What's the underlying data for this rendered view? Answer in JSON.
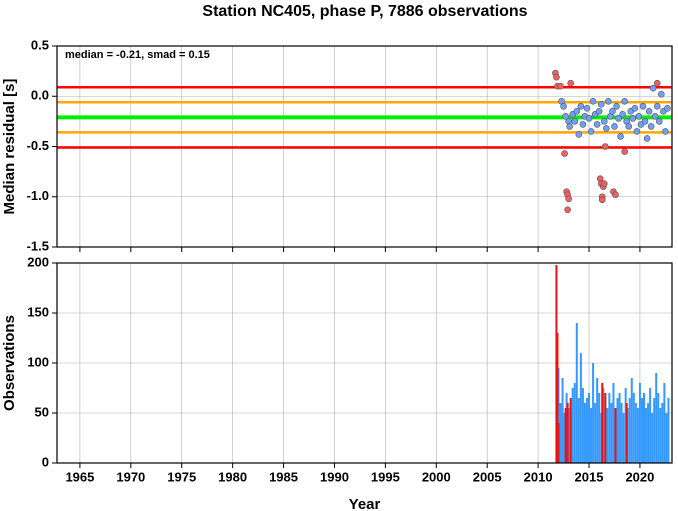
{
  "chart_data": [
    {
      "type": "scatter",
      "title": "Station NC405, phase P, 7886 observations",
      "annotation": "median = -0.21, smad = 0.15",
      "ylabel": "Median residual [s]",
      "xlim": [
        1962.75,
        2023.15
      ],
      "xticks": [
        1965,
        1970,
        1975,
        1980,
        1985,
        1990,
        1995,
        2000,
        2005,
        2010,
        2015,
        2020
      ],
      "ylim": [
        -1.5,
        0.5
      ],
      "yticks": [
        0.5,
        {
          "value": 0,
          "label": "0.0"
        },
        -0.5,
        {
          "value": -1,
          "label": "-1.0"
        },
        -1.5
      ],
      "grid": true,
      "hlines": [
        {
          "value": 0.09,
          "color": "#ff0000"
        },
        {
          "value": -0.06,
          "color": "#ffa500"
        },
        {
          "value": -0.21,
          "color": "#00ee00"
        },
        {
          "value": -0.36,
          "color": "#ffa500"
        },
        {
          "value": -0.51,
          "color": "#ff0000"
        }
      ],
      "series": [
        {
          "color": "#6fa0f8",
          "x": [
            2012.3,
            2012.5,
            2012.7,
            2013.0,
            2013.1,
            2013.4,
            2013.6,
            2013.8,
            2014.0,
            2014.2,
            2014.4,
            2014.6,
            2014.8,
            2015.0,
            2015.2,
            2015.4,
            2015.6,
            2015.8,
            2016.0,
            2016.2,
            2016.5,
            2016.7,
            2016.9,
            2017.1,
            2017.3,
            2017.5,
            2017.7,
            2017.9,
            2018.1,
            2018.3,
            2018.5,
            2018.7,
            2018.9,
            2019.1,
            2019.3,
            2019.5,
            2019.7,
            2019.9,
            2020.1,
            2020.3,
            2020.5,
            2020.7,
            2020.9,
            2021.1,
            2021.3,
            2021.5,
            2021.7,
            2021.9,
            2022.1,
            2022.3,
            2022.5,
            2022.7
          ],
          "values": [
            -0.05,
            -0.1,
            -0.2,
            -0.25,
            -0.3,
            -0.18,
            -0.25,
            -0.15,
            -0.38,
            -0.1,
            -0.28,
            -0.2,
            -0.12,
            -0.22,
            -0.35,
            -0.05,
            -0.18,
            -0.28,
            -0.15,
            -0.08,
            -0.25,
            -0.32,
            -0.05,
            -0.2,
            -0.15,
            -0.3,
            -0.1,
            -0.22,
            -0.4,
            -0.18,
            -0.05,
            -0.25,
            -0.3,
            -0.15,
            -0.22,
            -0.12,
            -0.35,
            -0.2,
            -0.28,
            -0.1,
            -0.25,
            -0.42,
            -0.15,
            -0.3,
            0.08,
            -0.2,
            -0.1,
            -0.25,
            0.02,
            -0.15,
            -0.35,
            -0.12
          ]
        },
        {
          "color": "#f06060",
          "x": [
            2011.7,
            2011.8,
            2011.9,
            2012.2,
            2012.6,
            2012.8,
            2012.9,
            2013.0,
            2012.9,
            2013.2,
            2016.1,
            2016.2,
            2016.4,
            2016.3,
            2016.5,
            2016.3,
            2017.4,
            2017.6,
            2018.5,
            2016.6,
            2021.7
          ],
          "values": [
            0.23,
            0.19,
            0.1,
            0.1,
            -0.57,
            -0.95,
            -0.98,
            -1.02,
            -1.13,
            0.13,
            -0.82,
            -0.87,
            -0.9,
            -1.0,
            -0.87,
            -1.03,
            -0.95,
            -0.98,
            -0.55,
            -0.5,
            0.13
          ]
        }
      ]
    },
    {
      "type": "bar",
      "ylabel": "Observations",
      "xlabel": "Year",
      "xlim": [
        1962.75,
        2023.15
      ],
      "xticks": [
        1965,
        1970,
        1975,
        1980,
        1985,
        1990,
        1995,
        2000,
        2005,
        2010,
        2015,
        2020
      ],
      "ylim": [
        0,
        200
      ],
      "yticks": [
        0,
        50,
        100,
        150,
        200
      ],
      "grid": true,
      "series": [
        {
          "color": "#3399ff",
          "x": [
            2012.0,
            2012.2,
            2012.4,
            2012.6,
            2012.8,
            2013.0,
            2013.2,
            2013.4,
            2013.6,
            2013.8,
            2014.0,
            2014.2,
            2014.4,
            2014.6,
            2014.8,
            2015.0,
            2015.2,
            2015.4,
            2015.6,
            2015.8,
            2016.0,
            2016.2,
            2016.4,
            2016.6,
            2016.8,
            2017.0,
            2017.2,
            2017.4,
            2017.6,
            2017.8,
            2018.0,
            2018.2,
            2018.4,
            2018.6,
            2018.8,
            2019.0,
            2019.2,
            2019.4,
            2019.6,
            2019.8,
            2020.0,
            2020.2,
            2020.4,
            2020.6,
            2020.8,
            2021.0,
            2021.2,
            2021.4,
            2021.6,
            2021.8,
            2022.0,
            2022.2,
            2022.4,
            2022.6,
            2022.8
          ],
          "values": [
            95,
            60,
            85,
            50,
            70,
            55,
            60,
            75,
            80,
            140,
            65,
            110,
            75,
            60,
            65,
            70,
            55,
            100,
            60,
            85,
            70,
            50,
            75,
            65,
            55,
            70,
            60,
            80,
            55,
            65,
            70,
            60,
            50,
            75,
            55,
            65,
            85,
            70,
            60,
            55,
            80,
            65,
            70,
            55,
            60,
            75,
            50,
            65,
            90,
            70,
            55,
            60,
            80,
            50,
            65
          ]
        },
        {
          "color": "#ee1111",
          "x": [
            2011.8,
            2011.9,
            2012.0,
            2012.7,
            2012.9,
            2013.2,
            2016.3,
            2016.6,
            2017.6,
            2018.7
          ],
          "values": [
            198,
            130,
            40,
            55,
            60,
            65,
            80,
            70,
            55,
            60
          ]
        }
      ]
    }
  ]
}
